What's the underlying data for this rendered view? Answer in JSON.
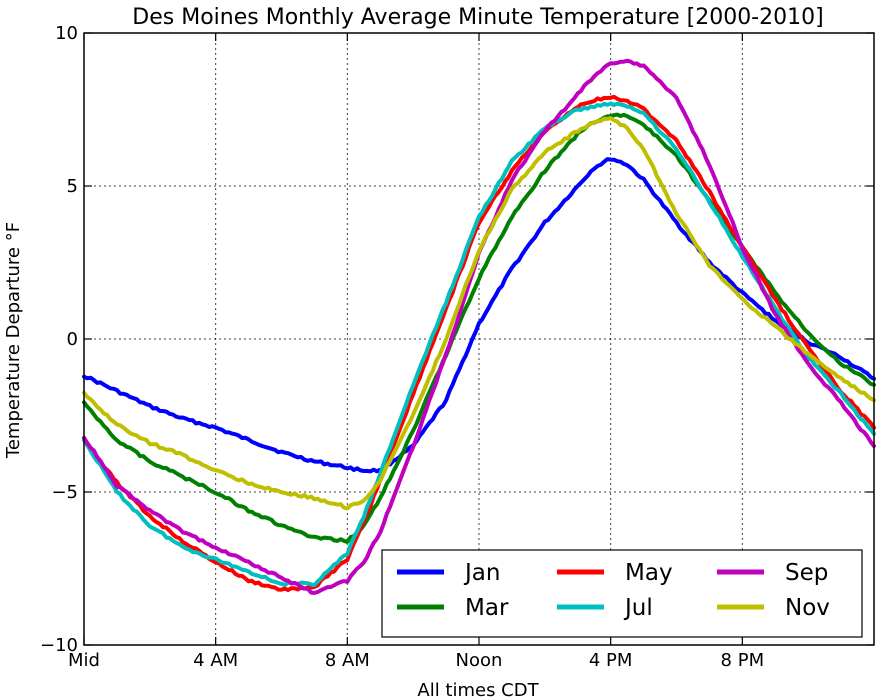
{
  "chart_data": {
    "type": "line",
    "title": "Des Moines Monthly Average Minute Temperature [2000-2010]",
    "xlabel": "All times CDT",
    "ylabel": "Temperature Departure °F",
    "xlim": [
      0,
      24
    ],
    "ylim": [
      -10,
      10
    ],
    "grid": true,
    "legend_position": "lower-right",
    "legend_columns": 3,
    "x_ticks": [
      {
        "value": 0,
        "label": "Mid"
      },
      {
        "value": 4,
        "label": "4 AM"
      },
      {
        "value": 8,
        "label": "8 AM"
      },
      {
        "value": 12,
        "label": "Noon"
      },
      {
        "value": 16,
        "label": "4 PM"
      },
      {
        "value": 20,
        "label": "8 PM"
      }
    ],
    "y_ticks": [
      {
        "value": 10,
        "label": "10"
      },
      {
        "value": 5,
        "label": "5"
      },
      {
        "value": 0,
        "label": "0"
      },
      {
        "value": -5,
        "label": "−5"
      },
      {
        "value": -10,
        "label": "−10"
      }
    ],
    "x": [
      0,
      1,
      2,
      3,
      4,
      5,
      6,
      7,
      8,
      8.5,
      9,
      10,
      11,
      12,
      13,
      14,
      15,
      15.5,
      16,
      16.5,
      17,
      18,
      19,
      20,
      21,
      22,
      23,
      24
    ],
    "series": [
      {
        "name": "Jan",
        "color": "#0000ff",
        "values": [
          -1.2,
          -1.7,
          -2.2,
          -2.6,
          -2.9,
          -3.3,
          -3.7,
          -4.0,
          -4.2,
          -4.3,
          -4.3,
          -3.5,
          -2.0,
          0.5,
          2.3,
          3.8,
          5.0,
          5.6,
          5.9,
          5.7,
          5.2,
          3.8,
          2.5,
          1.5,
          0.6,
          -0.1,
          -0.6,
          -1.3
        ]
      },
      {
        "name": "Mar",
        "color": "#008000",
        "values": [
          -2.1,
          -3.3,
          -4.0,
          -4.5,
          -5.0,
          -5.6,
          -6.1,
          -6.5,
          -6.6,
          -6.1,
          -5.2,
          -3.0,
          -0.5,
          2.0,
          4.0,
          5.5,
          6.7,
          7.1,
          7.3,
          7.3,
          7.0,
          6.0,
          4.5,
          3.0,
          1.5,
          0.2,
          -0.8,
          -1.5
        ]
      },
      {
        "name": "May",
        "color": "#ff0000",
        "values": [
          -3.3,
          -4.7,
          -5.8,
          -6.6,
          -7.3,
          -7.9,
          -8.2,
          -8.1,
          -7.2,
          -6.0,
          -4.6,
          -1.8,
          1.0,
          3.8,
          5.5,
          6.8,
          7.6,
          7.8,
          7.9,
          7.8,
          7.5,
          6.5,
          4.8,
          3.0,
          1.3,
          -0.3,
          -1.7,
          -2.9
        ]
      },
      {
        "name": "Jul",
        "color": "#00bfbf",
        "values": [
          -3.3,
          -5.0,
          -6.1,
          -6.8,
          -7.2,
          -7.6,
          -8.0,
          -8.0,
          -7.0,
          -5.8,
          -4.4,
          -1.5,
          1.2,
          4.0,
          5.8,
          6.9,
          7.5,
          7.6,
          7.7,
          7.6,
          7.4,
          6.2,
          4.5,
          2.7,
          1.0,
          -0.6,
          -1.8,
          -3.1
        ]
      },
      {
        "name": "Sep",
        "color": "#bf00bf",
        "values": [
          -3.2,
          -4.8,
          -5.6,
          -6.3,
          -6.8,
          -7.3,
          -7.8,
          -8.3,
          -7.9,
          -7.3,
          -6.3,
          -3.5,
          -0.5,
          2.8,
          5.2,
          6.8,
          8.0,
          8.6,
          9.0,
          9.1,
          8.9,
          7.9,
          5.7,
          3.0,
          0.8,
          -0.8,
          -2.1,
          -3.5
        ]
      },
      {
        "name": "Nov",
        "color": "#bfbf00",
        "values": [
          -1.8,
          -2.8,
          -3.4,
          -3.8,
          -4.3,
          -4.7,
          -5.0,
          -5.2,
          -5.5,
          -5.3,
          -4.6,
          -2.5,
          0.0,
          2.9,
          4.9,
          6.1,
          6.8,
          7.1,
          7.2,
          6.9,
          6.2,
          4.1,
          2.4,
          1.3,
          0.4,
          -0.5,
          -1.3,
          -2.0
        ]
      }
    ]
  }
}
